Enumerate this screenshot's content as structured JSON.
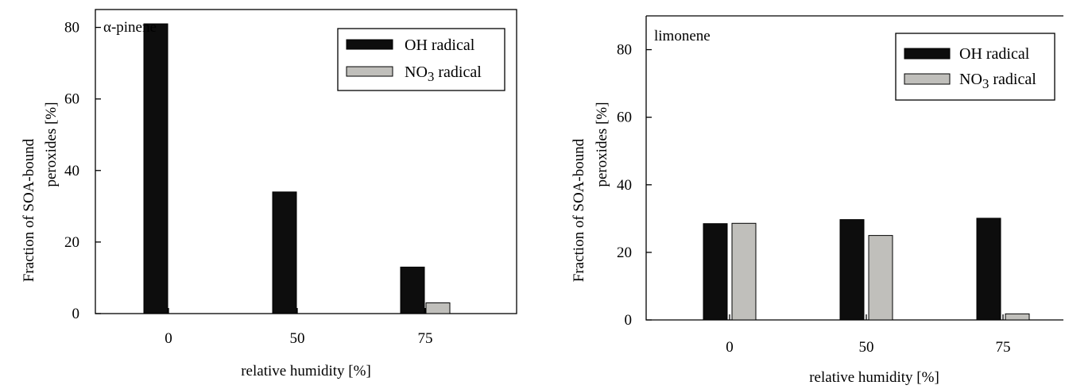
{
  "chart_data": [
    {
      "type": "bar",
      "title": "α-pinene",
      "xlabel": "relative humidity [%]",
      "ylabel_line1": "Fraction of SOA-bound",
      "ylabel_line2": "peroxides [%]",
      "categories": [
        "0",
        "50",
        "75"
      ],
      "series": [
        {
          "name": "OH radical",
          "values": [
            81,
            34,
            13
          ],
          "color": "#0d0d0d"
        },
        {
          "name": "NO3 radical",
          "name_base": "NO",
          "name_sub": "3",
          "name_rest": " radical",
          "values": [
            0,
            0,
            3
          ],
          "color": "#c0bfbb"
        }
      ],
      "ylim": [
        0,
        85
      ],
      "yticks": [
        0,
        20,
        40,
        60,
        80
      ],
      "grid": false,
      "legend_position": "top-right"
    },
    {
      "type": "bar",
      "title": "limonene",
      "xlabel": "relative humidity [%]",
      "ylabel_line1": "Fraction of SOA-bound",
      "ylabel_line2": "peroxides [%]",
      "categories": [
        "0",
        "50",
        "75"
      ],
      "series": [
        {
          "name": "OH radical",
          "values": [
            28.5,
            29.7,
            30.1
          ],
          "color": "#0d0d0d"
        },
        {
          "name": "NO3 radical",
          "name_base": "NO",
          "name_sub": "3",
          "name_rest": " radical",
          "values": [
            28.6,
            25,
            1.8
          ],
          "color": "#c0bfbb"
        }
      ],
      "ylim": [
        0,
        90
      ],
      "yticks": [
        0,
        20,
        40,
        60,
        80
      ],
      "grid": false,
      "legend_position": "top-right"
    }
  ]
}
